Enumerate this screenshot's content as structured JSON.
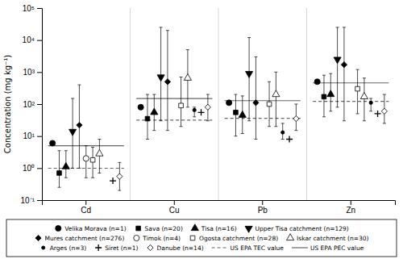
{
  "chart_data": {
    "type": "scatter",
    "categories": [
      "Cd",
      "Cu",
      "Pb",
      "Zn"
    ],
    "ylabel": "Concentration (mg kg⁻¹)",
    "log": "y",
    "ylim": [
      0.1,
      100000
    ],
    "yticks": [
      {
        "value": 0.1,
        "label": "10⁻¹"
      },
      {
        "value": 1,
        "label": "10⁰"
      },
      {
        "value": 10,
        "label": "10¹"
      },
      {
        "value": 100,
        "label": "10²"
      },
      {
        "value": 1000,
        "label": "10³"
      },
      {
        "value": 10000,
        "label": "10⁴"
      },
      {
        "value": 100000,
        "label": "10⁵"
      }
    ],
    "grid": false,
    "legend": "bottom",
    "series": [
      {
        "name": "Velika Morava (n=1)",
        "marker": "circle",
        "color": "#000000",
        "values": [
          6.0,
          80,
          110,
          500
        ],
        "min": [
          null,
          null,
          null,
          null
        ],
        "max": [
          null,
          null,
          null,
          null
        ]
      },
      {
        "name": "Sava (n=20)",
        "marker": "square",
        "color": "#000000",
        "values": [
          0.7,
          35,
          55,
          170
        ],
        "min": [
          0.25,
          8,
          10,
          40
        ],
        "max": [
          3.5,
          200,
          200,
          800
        ]
      },
      {
        "name": "Tisa (n=16)",
        "marker": "triangle-up",
        "color": "#000000",
        "values": [
          1.1,
          55,
          45,
          200
        ],
        "min": [
          0.5,
          15,
          12,
          60
        ],
        "max": [
          3.5,
          200,
          180,
          900
        ]
      },
      {
        "name": "Upper Tisa catchment (n=129)",
        "marker": "triangle-down",
        "color": "#000000",
        "values": [
          14,
          700,
          900,
          2500
        ],
        "min": [
          1,
          30,
          30,
          80
        ],
        "max": [
          150,
          25000,
          12000,
          25000
        ]
      },
      {
        "name": "Mures catchment (n=276)",
        "marker": "diamond",
        "color": "#000000",
        "values": [
          22,
          500,
          110,
          1700
        ],
        "min": [
          1,
          15,
          8,
          30
        ],
        "max": [
          400,
          20000,
          3000,
          25000
        ]
      },
      {
        "name": "Timok (n=4)",
        "marker": "circle",
        "color": "#ffffff",
        "values": [
          2.0,
          null,
          null,
          null
        ],
        "min": [
          0.5,
          null,
          null,
          null
        ],
        "max": [
          5.0,
          null,
          null,
          null
        ]
      },
      {
        "name": "Ogosta catchment (n=28)",
        "marker": "square",
        "color": "#ffffff",
        "values": [
          1.8,
          90,
          100,
          300
        ],
        "min": [
          0.5,
          20,
          20,
          50
        ],
        "max": [
          4.5,
          700,
          500,
          1200
        ]
      },
      {
        "name": "Iskar catchment (n=30)",
        "marker": "triangle-up",
        "color": "#ffffff",
        "values": [
          2.8,
          650,
          200,
          170
        ],
        "min": [
          0.7,
          80,
          20,
          30
        ],
        "max": [
          8.0,
          5000,
          1000,
          650
        ]
      },
      {
        "name": "Arges (n=3)",
        "marker": "dot",
        "color": "#000000",
        "values": [
          null,
          65,
          13,
          110
        ],
        "min": [
          null,
          40,
          8,
          60
        ],
        "max": [
          null,
          80,
          25,
          150
        ]
      },
      {
        "name": "Siret (n=1)",
        "marker": "plus",
        "color": "#000000",
        "values": [
          0.4,
          55,
          8,
          50
        ],
        "min": [
          null,
          null,
          null,
          null
        ],
        "max": [
          null,
          null,
          null,
          null
        ]
      },
      {
        "name": "Danube (n=14)",
        "marker": "diamond",
        "color": "#ffffff",
        "values": [
          0.55,
          80,
          35,
          60
        ],
        "min": [
          0.2,
          30,
          15,
          25
        ],
        "max": [
          1.5,
          200,
          100,
          200
        ]
      },
      {
        "name": "US EPA TEC value",
        "type": "hline",
        "line_style": "dashed",
        "color": "#666666",
        "values": [
          0.99,
          31.6,
          35.8,
          121
        ]
      },
      {
        "name": "US EPA PEC value",
        "type": "hline",
        "line_style": "solid",
        "color": "#666666",
        "values": [
          4.98,
          149,
          128,
          459
        ]
      }
    ]
  }
}
